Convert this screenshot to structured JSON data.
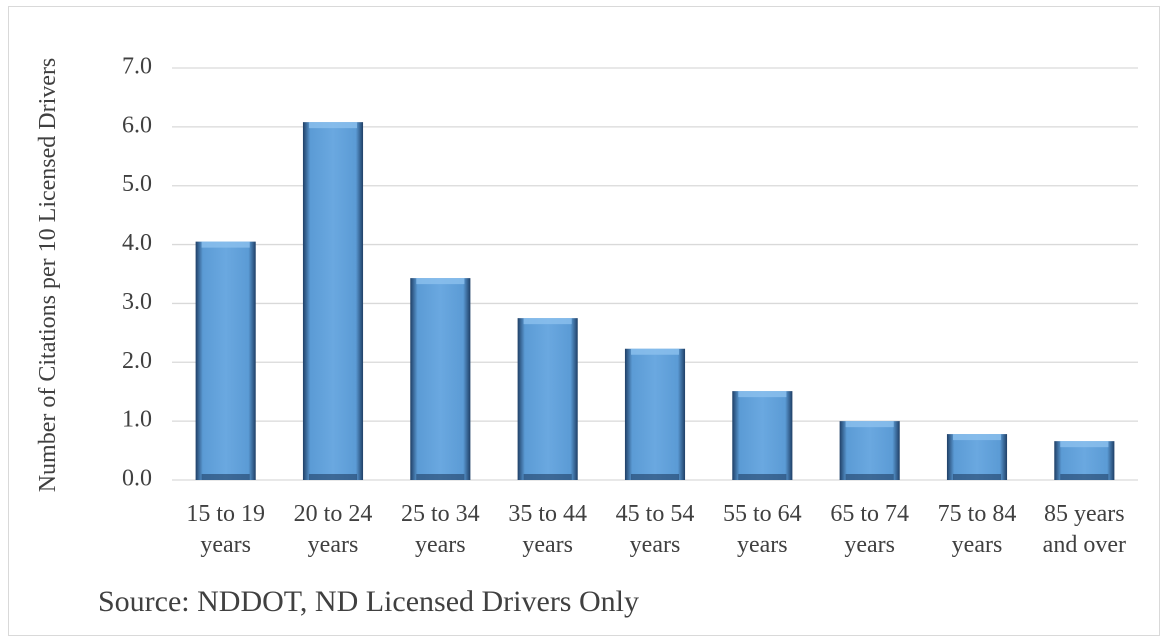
{
  "chart_data": {
    "type": "bar",
    "y_label": "Number of Citations per 10 Licensed Drivers",
    "source": "Source: NDDOT, ND Licensed Drivers Only",
    "categories": [
      "15 to 19 years",
      "20 to 24 years",
      "25 to 34 years",
      "35 to 44 years",
      "45 to 54 years",
      "55 to 64 years",
      "65 to 74 years",
      "75 to 84 years",
      "85 years and over"
    ],
    "values": [
      4.05,
      6.08,
      3.43,
      2.75,
      2.23,
      1.51,
      1.0,
      0.78,
      0.66
    ],
    "color": "#5b9bd5",
    "ylim": [
      0,
      7
    ],
    "yticks": [
      {
        "value": 0,
        "label": "0.0"
      },
      {
        "value": 1,
        "label": "1.0"
      },
      {
        "value": 2,
        "label": "2.0"
      },
      {
        "value": 3,
        "label": "3.0"
      },
      {
        "value": 4,
        "label": "4.0"
      },
      {
        "value": 5,
        "label": "5.0"
      },
      {
        "value": 6,
        "label": "6.0"
      },
      {
        "value": 7,
        "label": "7.0"
      }
    ],
    "grid": true
  }
}
